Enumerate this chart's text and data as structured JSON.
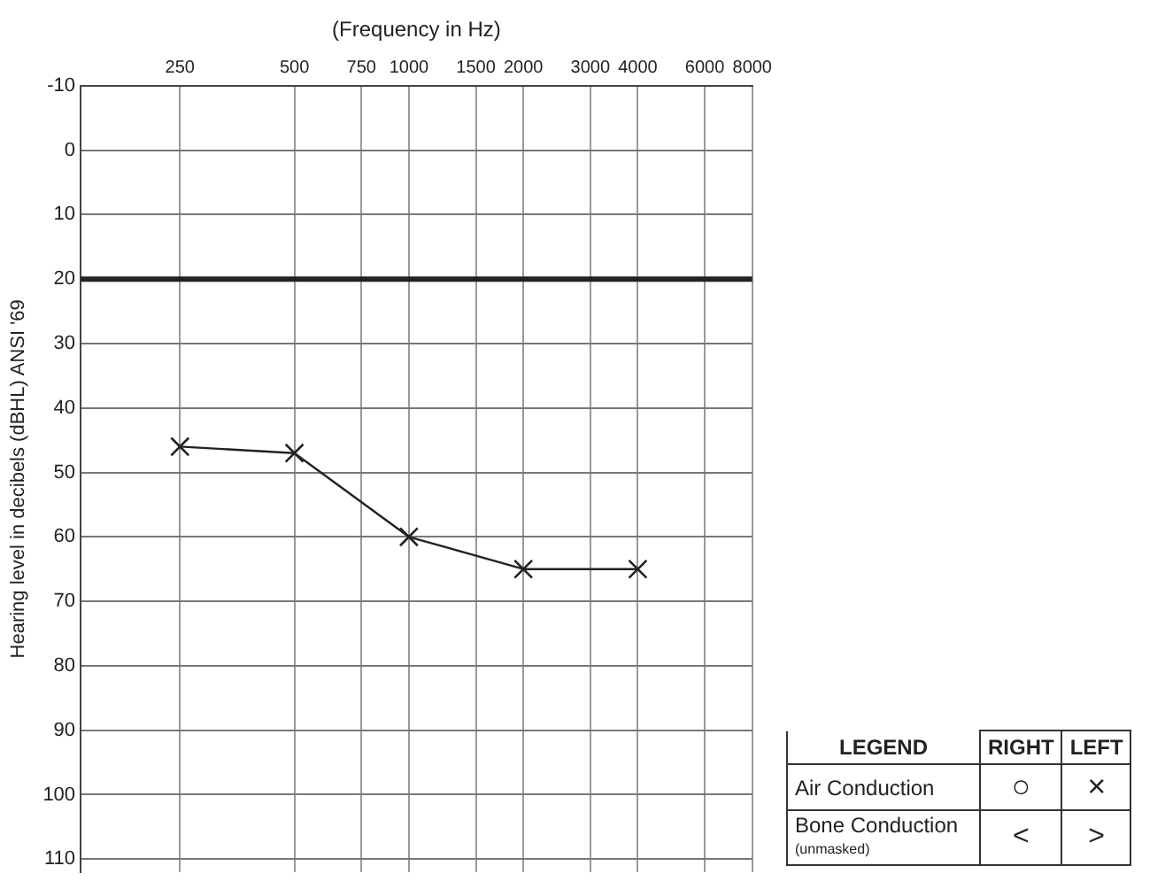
{
  "chart_data": {
    "type": "line",
    "xlabel": "(Frequency in Hz)",
    "ylabel": "Hearing level in decibels (dBHL) ANSI '69",
    "log": "x",
    "x": [
      250,
      500,
      1000,
      2000,
      4000
    ],
    "series": [
      {
        "color": "#222222",
        "values": [
          46,
          47,
          60,
          65,
          65
        ]
      }
    ],
    "xlim": [
      137,
      8000
    ],
    "xticks": [
      250,
      500,
      750,
      1000,
      1500,
      2000,
      3000,
      4000,
      6000,
      8000
    ],
    "ylim": [
      112,
      -10
    ],
    "yticks": [
      -10,
      0,
      10,
      20,
      30,
      40,
      50,
      60,
      70,
      80,
      90,
      100,
      110
    ],
    "grid": true,
    "marker": "cross",
    "line_style": "solid",
    "ref_lines": [
      {
        "axis": "y",
        "value": 20,
        "color": "#222222"
      }
    ],
    "legend_title": "LEGEND",
    "annotations": [
      "RIGHT",
      "LEFT",
      "Air Conduction",
      "○",
      "×",
      "Bone Conduction",
      "(unmasked)",
      "<",
      ">"
    ]
  }
}
